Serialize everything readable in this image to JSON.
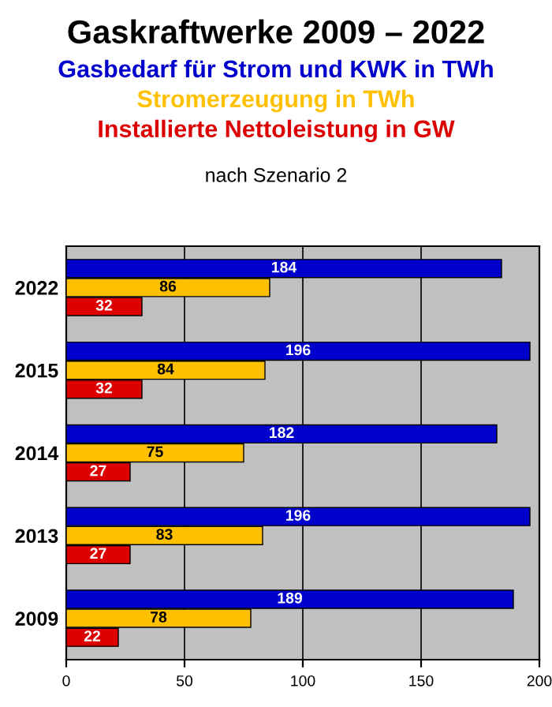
{
  "chart_data": {
    "type": "bar",
    "orientation": "horizontal",
    "title": "Gaskraftwerke 2009 – 2022",
    "subtitle": "nach Szenario 2",
    "categories": [
      "2022",
      "2015",
      "2014",
      "2013",
      "2009"
    ],
    "series": [
      {
        "name": "Gasbedarf für Strom und KWK in TWh",
        "color": "#0000cc",
        "values": [
          184,
          196,
          182,
          196,
          189
        ]
      },
      {
        "name": "Stromerzeugung in TWh",
        "color": "#ffc000",
        "values": [
          86,
          84,
          75,
          83,
          78
        ]
      },
      {
        "name": "Installierte Nettoleistung in GW",
        "color": "#dd0000",
        "values": [
          32,
          32,
          27,
          27,
          22
        ]
      }
    ],
    "xlim": [
      0,
      200
    ],
    "xticks": [
      0,
      50,
      100,
      150,
      200
    ],
    "grid": "x",
    "data_labels": true,
    "legend": "top"
  }
}
